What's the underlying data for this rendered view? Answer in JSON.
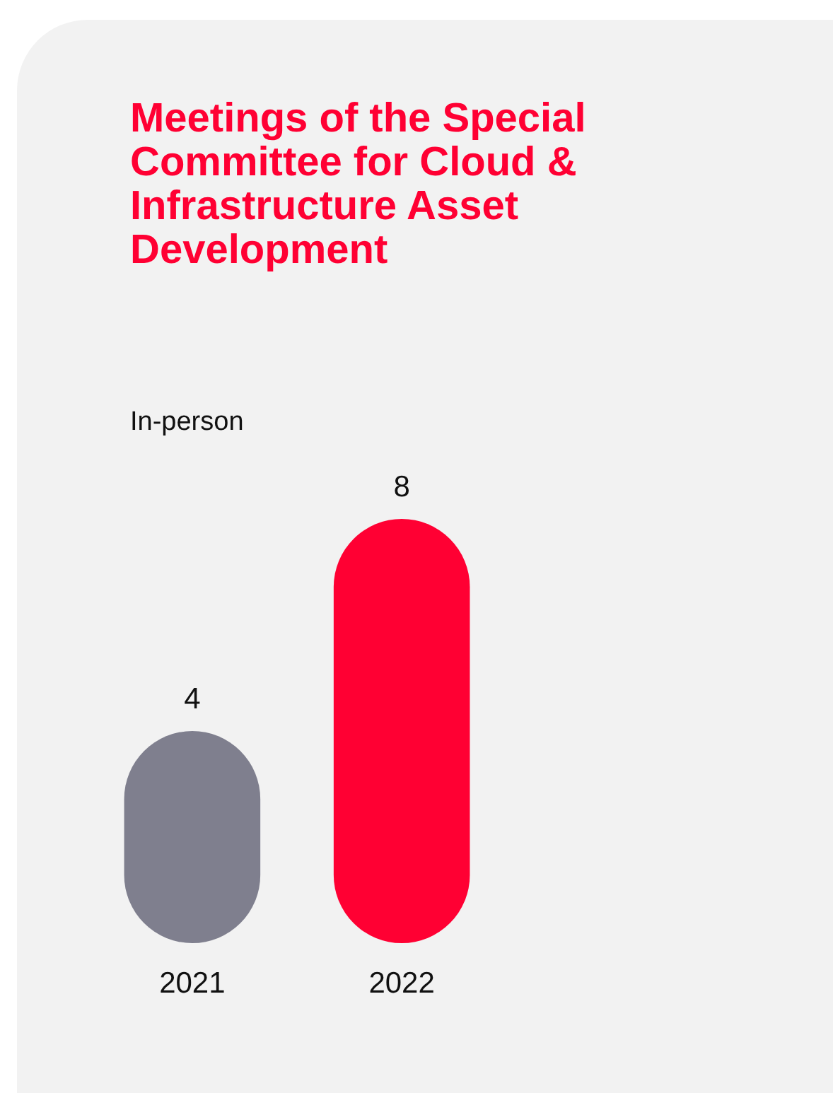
{
  "chart_data": {
    "type": "bar",
    "title": "Meetings of the Special Committee for Cloud & Infrastructure Asset Development",
    "subtitle": "In-person",
    "categories": [
      "2021",
      "2022"
    ],
    "values": [
      4,
      8
    ],
    "colors": [
      "#7f7f8e",
      "#ff0033"
    ],
    "data_labels": true
  }
}
